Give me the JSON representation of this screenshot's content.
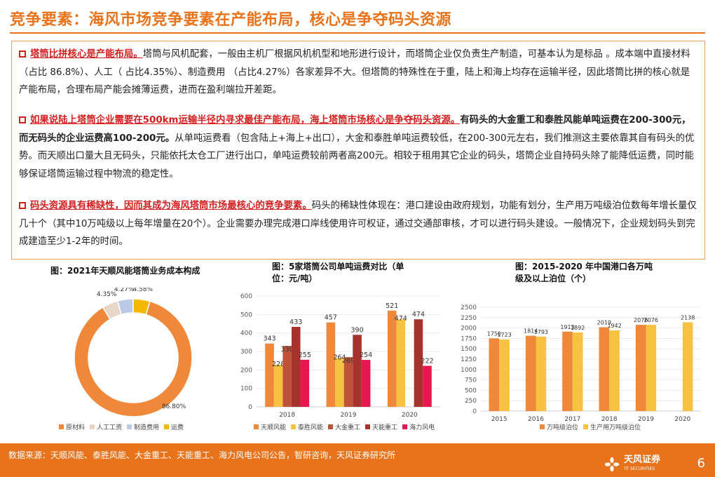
{
  "title": "竞争要素：海风市场竞争要素在产能布局，核心是争夺码头资源",
  "paragraphs": [
    {
      "lead": "塔筒比拼核心是产能布局。",
      "bold": "",
      "text": "塔筒与风机配套，一般由主机厂根据风机机型和地形进行设计，而塔筒企业仅负责生产制造，可基本认为是标品 。成本端中直接材料（占比 86.8%）、人工（ 占比4.35%）、制造费用 （占比4.27%）各家差异不大。但塔筒的特殊性在于重，陆上和海上均存在运输半径，因此塔筒比拼的核心就是产能布局，合理布局产能会摊薄运费，进而在盈利端拉开差距。"
    },
    {
      "lead": "如果说陆上塔筒企业需要在500km运输半径内寻求最佳产能布局，海上塔筒市场核心是争夺码头资源。",
      "bold": "有码头的大金重工和泰胜风能单吨运费在200-300元，而无码头的企业运费高100-200元。",
      "text": "从单吨运费看（包含陆上+海上+出口），大金和泰胜单吨运费较低，在200-300元左右，我们推测这主要依靠其自有码头的优势。而天顺出口量大且无码头，只能依托太仓工厂进行出口，单吨运费较前两者高200元。相较于租用其它企业的码头，塔筒企业自持码头除了能降低运费，同时能够保证塔筒运输过程中物流的稳定性。"
    },
    {
      "lead": "码头资源具有稀缺性，因而其成为海风塔筒市场最核心的竞争要素。",
      "bold": "",
      "text": "码头的稀缺性体现在：港口建设由政府规划，功能有划分，生产用万吨级泊位数每年增长量仅几十个（其中10万吨级以上每年增量在20个）。企业需要办理完成港口岸线使用许可权证，通过交通部审核，才可以进行码头建设。一般情况下，企业规划码头到完成建造至少1-2年的时间。"
    }
  ],
  "charts_titles": {
    "c1": "图：2021年天顺风能塔筒业务成本构成",
    "c2a": "图：5家塔筒公司单吨运费对比（单",
    "c2b": "位：元/吨）",
    "c3a": "图：2015-2020 年中国港口各万吨",
    "c3b": "级及以上泊位（个）"
  },
  "chart_data": [
    {
      "type": "pie",
      "title": "图：2021年天顺风能塔筒业务成本构成",
      "labels": [
        "原材料",
        "人工工资",
        "制造费用",
        "运费"
      ],
      "values": [
        86.8,
        4.35,
        4.27,
        4.58
      ],
      "value_labels": [
        "86.80%",
        "4.35%",
        "4.27%",
        "4.58%"
      ],
      "colors": [
        "#f0883a",
        "#e8d6c8",
        "#b9c9e6",
        "#f5b800"
      ]
    },
    {
      "type": "bar",
      "title": "图：5家塔筒公司单吨运费对比（单位：元/吨）",
      "categories": [
        "2018",
        "2019",
        "2020"
      ],
      "ylim": [
        0,
        600
      ],
      "yticks": [
        "0",
        "100",
        "200",
        "300",
        "400",
        "500",
        "600"
      ],
      "series": [
        {
          "name": "天顺风能",
          "color": "#f0883a",
          "values": [
            343,
            457,
            521
          ]
        },
        {
          "name": "泰胜风能",
          "color": "#f7c242",
          "values": [
            228,
            264,
            474
          ]
        },
        {
          "name": "大金重工",
          "color": "#c0523a",
          "values": [
            330,
            269,
            null
          ]
        },
        {
          "name": "天能重工",
          "color": "#a8322c",
          "values": [
            433,
            390,
            474
          ]
        },
        {
          "name": "海力风电",
          "color": "#e8174f",
          "values": [
            255,
            254,
            222
          ]
        }
      ]
    },
    {
      "type": "bar",
      "title": "图：2015-2020 年中国港口各万吨级及以上泊位（个）",
      "categories": [
        "2015",
        "2016",
        "2017",
        "2018",
        "2019",
        "2020"
      ],
      "ylim": [
        0,
        2500
      ],
      "yticks": [
        "0",
        "250",
        "500",
        "750",
        "1000",
        "1250",
        "1500",
        "1750",
        "2000",
        "2250",
        "2500"
      ],
      "series": [
        {
          "name": "万吨级泊位",
          "color": "#f0883a",
          "values": [
            1750,
            1814,
            1913,
            2019,
            2076,
            null
          ]
        },
        {
          "name": "生产用万吨级泊位",
          "color": "#f7c242",
          "values": [
            1723,
            1793,
            1892,
            1942,
            2076,
            2138
          ]
        }
      ]
    }
  ],
  "footer": {
    "source": "数据来源：天顺风能、泰胜风能、大金重工、天能重工、海力风电公司公告，智研咨询，天风证券研究所",
    "logo_text": "天风证券",
    "logo_sub": "TF SECURITIES",
    "page": "6"
  },
  "colors": {
    "accent": "#e8731a",
    "highlight": "#d21f1f"
  }
}
